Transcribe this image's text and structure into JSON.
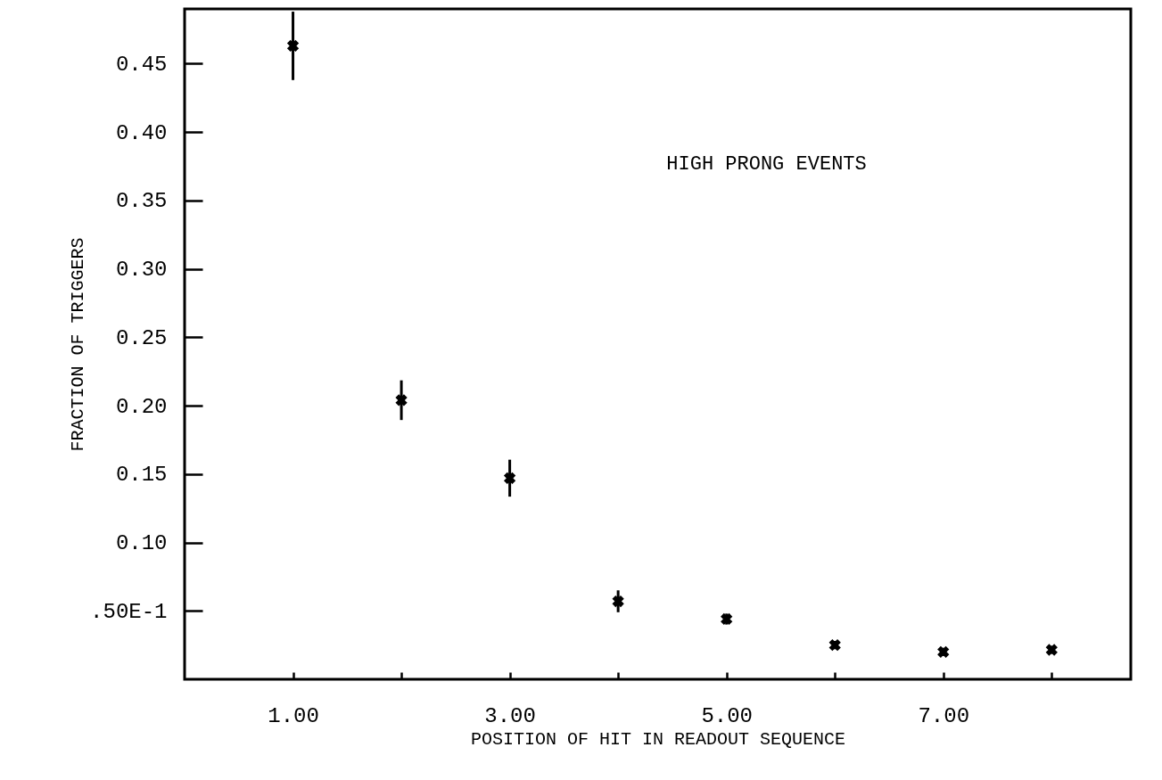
{
  "chart_data": {
    "type": "scatter",
    "xlabel": "POSITION OF HIT IN READOUT SEQUENCE",
    "ylabel": "FRACTION OF TRIGGERS",
    "annotations": [
      "HIGH PRONG EVENTS"
    ],
    "x": [
      1,
      2,
      3,
      4,
      5,
      6,
      7,
      8
    ],
    "series": [
      {
        "color": "#000000",
        "values": [
          0.463,
          0.204,
          0.147,
          0.057,
          0.044,
          0.025,
          0.02,
          0.0215
        ],
        "errors": [
          0.025,
          0.0145,
          0.0135,
          0.008,
          0.004,
          0.003,
          0.003,
          0.003
        ]
      }
    ],
    "marker": "cross",
    "grid": false,
    "xlim": [
      0,
      8.73
    ],
    "ylim": [
      0,
      0.49
    ],
    "xticks": [
      {
        "value": 1,
        "label": "1.00"
      },
      {
        "value": 2,
        "label": null
      },
      {
        "value": 3,
        "label": "3.00"
      },
      {
        "value": 4,
        "label": null
      },
      {
        "value": 5,
        "label": "5.00"
      },
      {
        "value": 6,
        "label": null
      },
      {
        "value": 7,
        "label": "7.00"
      },
      {
        "value": 8,
        "label": null
      }
    ],
    "yticks": [
      {
        "value": 0.05,
        "label": ".50E-1"
      },
      {
        "value": 0.1,
        "label": "0.10"
      },
      {
        "value": 0.15,
        "label": "0.15"
      },
      {
        "value": 0.2,
        "label": "0.20"
      },
      {
        "value": 0.25,
        "label": "0.25"
      },
      {
        "value": 0.3,
        "label": "0.30"
      },
      {
        "value": 0.35,
        "label": "0.35"
      },
      {
        "value": 0.4,
        "label": "0.40"
      },
      {
        "value": 0.45,
        "label": "0.45"
      }
    ]
  }
}
